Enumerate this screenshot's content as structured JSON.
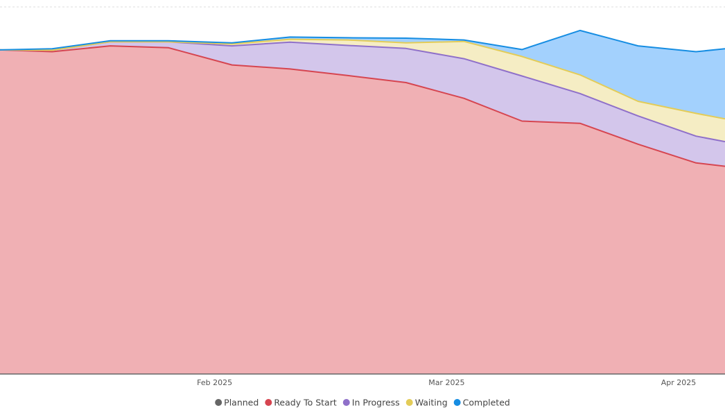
{
  "chart_data": {
    "type": "area",
    "stacked": true,
    "title": "",
    "xlabel": "",
    "ylabel": "",
    "grid": true,
    "legend_position": "bottom-center",
    "x_tick_labels": [
      {
        "label": "Feb 2025",
        "x": 10
      },
      {
        "label": "Mar 2025",
        "x": 14
      },
      {
        "label": "Apr 2025",
        "x": 18
      }
    ],
    "xlim": [
      6.3,
      18.8
    ],
    "ylim": [
      0,
      100
    ],
    "x": [
      6.3,
      7.2,
      8.2,
      9.2,
      10.3,
      11.3,
      12.3,
      13.3,
      14.3,
      15.3,
      16.3,
      17.3,
      18.3,
      18.8
    ],
    "series": [
      {
        "name": "Planned",
        "color": "#666666",
        "fill": "#8a8a8a",
        "values": [
          0,
          0,
          0,
          0,
          0,
          0,
          0,
          0,
          0,
          0,
          0,
          0,
          0,
          0
        ]
      },
      {
        "name": "Ready To Start",
        "color": "#d64550",
        "fill": "#f0b0b4",
        "values": [
          88.3,
          87.8,
          89.4,
          88.9,
          84.2,
          83.1,
          81.3,
          79.4,
          75.1,
          68.9,
          68.3,
          62.6,
          57.5,
          56.6
        ]
      },
      {
        "name": "In Progress",
        "color": "#8f70c9",
        "fill": "#d3c6eb",
        "values": [
          0,
          0.4,
          1.1,
          1.6,
          5.2,
          7.3,
          8.2,
          9.3,
          10.8,
          12.3,
          8.1,
          7.7,
          7.3,
          6.7
        ]
      },
      {
        "name": "Waiting",
        "color": "#e3cc58",
        "fill": "#f5edc4",
        "values": [
          0,
          0,
          0,
          0,
          0.5,
          0.8,
          1.5,
          1.5,
          4.7,
          5.3,
          5.1,
          4.0,
          6.2,
          6.2
        ]
      },
      {
        "name": "Completed",
        "color": "#168de2",
        "fill": "#a3d1fd",
        "values": [
          0,
          0.4,
          0.3,
          0.3,
          0.3,
          0.6,
          0.6,
          1.3,
          0.4,
          1.9,
          12.1,
          15.1,
          16.8,
          19.1
        ]
      }
    ]
  }
}
